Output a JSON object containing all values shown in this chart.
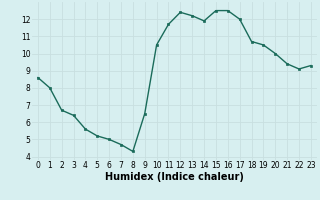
{
  "x": [
    0,
    1,
    2,
    3,
    4,
    5,
    6,
    7,
    8,
    9,
    10,
    11,
    12,
    13,
    14,
    15,
    16,
    17,
    18,
    19,
    20,
    21,
    22,
    23
  ],
  "y": [
    8.6,
    8.0,
    6.7,
    6.4,
    5.6,
    5.2,
    5.0,
    4.7,
    4.3,
    6.5,
    10.5,
    11.7,
    12.4,
    12.2,
    11.9,
    12.5,
    12.5,
    12.0,
    10.7,
    10.5,
    10.0,
    9.4,
    9.1,
    9.3
  ],
  "line_color": "#1a6b5a",
  "marker": "s",
  "markersize": 2.0,
  "linewidth": 1.0,
  "xlabel": "Humidex (Indice chaleur)",
  "ylabel": "",
  "title": "",
  "xlim": [
    -0.5,
    23.5
  ],
  "ylim": [
    3.8,
    13.0
  ],
  "yticks": [
    4,
    5,
    6,
    7,
    8,
    9,
    10,
    11,
    12
  ],
  "xticks": [
    0,
    1,
    2,
    3,
    4,
    5,
    6,
    7,
    8,
    9,
    10,
    11,
    12,
    13,
    14,
    15,
    16,
    17,
    18,
    19,
    20,
    21,
    22,
    23
  ],
  "bg_color": "#d7eff0",
  "grid_color": "#c8dfe0",
  "tick_label_fontsize": 5.5,
  "xlabel_fontsize": 7.0,
  "xlabel_fontweight": "bold"
}
